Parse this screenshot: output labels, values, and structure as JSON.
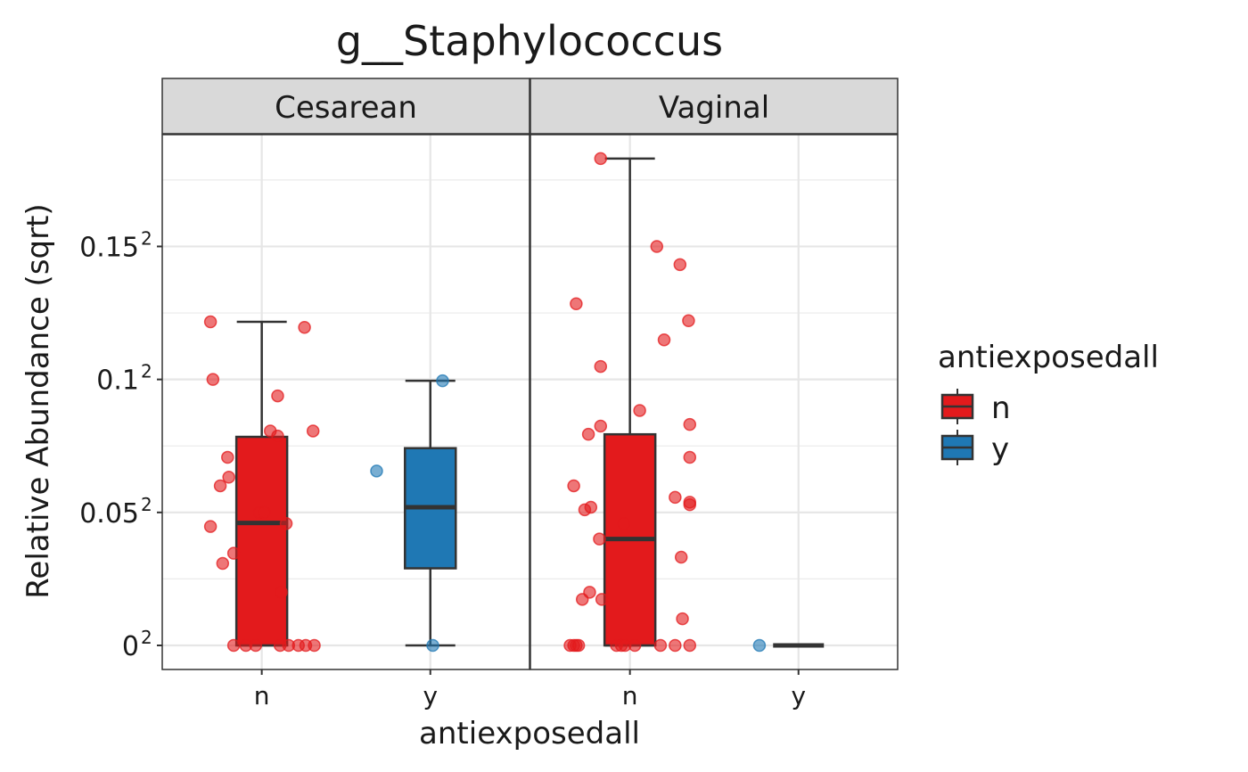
{
  "chart_data": {
    "type": "box",
    "title": "g__Staphylococcus",
    "xlabel": "antiexposedall",
    "ylabel": "Relative Abundance (sqrt)",
    "y_scale": "sqrt",
    "ylim": [
      0,
      0.0373
    ],
    "y_ticks": [
      {
        "base": "0",
        "value": 0
      },
      {
        "base": "0.05",
        "value": 0.0025
      },
      {
        "base": "0.1",
        "value": 0.01
      },
      {
        "base": "0.15",
        "value": 0.0225
      }
    ],
    "tick_exponent": "2",
    "categories": [
      "n",
      "y"
    ],
    "legend": {
      "title": "antiexposedall",
      "position": "right",
      "entries": [
        {
          "label": "n",
          "color": "#E31A1C"
        },
        {
          "label": "y",
          "color": "#1F78B4"
        }
      ]
    },
    "facets": [
      {
        "label": "Cesarean",
        "groups": [
          {
            "category": "n",
            "box": {
              "min": 0,
              "q1": 0,
              "median": 0.00212,
              "q3": 0.00615,
              "max": 0.0148
            },
            "points": [
              {
                "x": -0.42,
                "y": 0.0148
              },
              {
                "x": 0.35,
                "y": 0.0143
              },
              {
                "x": -0.4,
                "y": 0.01
              },
              {
                "x": 0.13,
                "y": 0.0088
              },
              {
                "x": 0.42,
                "y": 0.0065
              },
              {
                "x": 0.07,
                "y": 0.0065
              },
              {
                "x": 0.13,
                "y": 0.0062
              },
              {
                "x": -0.28,
                "y": 0.005
              },
              {
                "x": -0.27,
                "y": 0.004
              },
              {
                "x": -0.34,
                "y": 0.0036
              },
              {
                "x": -0.02,
                "y": 0.0025
              },
              {
                "x": 0.02,
                "y": 0.0025
              },
              {
                "x": 0.2,
                "y": 0.0021
              },
              {
                "x": -0.42,
                "y": 0.002
              },
              {
                "x": -0.23,
                "y": 0.0012
              },
              {
                "x": -0.32,
                "y": 0.00095
              },
              {
                "x": 0.16,
                "y": 0.0004
              },
              {
                "x": -0.23,
                "y": 0
              },
              {
                "x": -0.13,
                "y": 0
              },
              {
                "x": -0.05,
                "y": 0
              },
              {
                "x": 0.15,
                "y": 0
              },
              {
                "x": 0.22,
                "y": 0
              },
              {
                "x": 0.3,
                "y": 0
              },
              {
                "x": 0.36,
                "y": 0
              },
              {
                "x": 0.43,
                "y": 0
              }
            ]
          },
          {
            "category": "y",
            "box": {
              "min": 0,
              "q1": 0.00084,
              "median": 0.0027,
              "q3": 0.0055,
              "max": 0.0099
            },
            "points": [
              {
                "x": 0.1,
                "y": 0.0099
              },
              {
                "x": -0.44,
                "y": 0.0043
              },
              {
                "x": 0.02,
                "y": 0
              }
            ]
          }
        ]
      },
      {
        "label": "Vaginal",
        "groups": [
          {
            "category": "n",
            "box": {
              "min": 0,
              "q1": 0,
              "median": 0.0016,
              "q3": 0.0063,
              "max": 0.0335
            },
            "points": [
              {
                "x": -0.24,
                "y": 0.0335
              },
              {
                "x": 0.22,
                "y": 0.0225
              },
              {
                "x": 0.41,
                "y": 0.0205
              },
              {
                "x": -0.44,
                "y": 0.0165
              },
              {
                "x": 0.48,
                "y": 0.0149
              },
              {
                "x": 0.28,
                "y": 0.0132
              },
              {
                "x": -0.24,
                "y": 0.011
              },
              {
                "x": 0.08,
                "y": 0.0078
              },
              {
                "x": -0.24,
                "y": 0.0068
              },
              {
                "x": 0.49,
                "y": 0.0069
              },
              {
                "x": -0.34,
                "y": 0.0063
              },
              {
                "x": 0.49,
                "y": 0.005
              },
              {
                "x": -0.46,
                "y": 0.0036
              },
              {
                "x": 0.37,
                "y": 0.0031
              },
              {
                "x": -0.32,
                "y": 0.0027
              },
              {
                "x": -0.37,
                "y": 0.0026
              },
              {
                "x": 0.49,
                "y": 0.0028
              },
              {
                "x": 0.49,
                "y": 0.0029
              },
              {
                "x": -0.05,
                "y": 0.0021
              },
              {
                "x": -0.25,
                "y": 0.0016
              },
              {
                "x": 0.42,
                "y": 0.0011
              },
              {
                "x": -0.33,
                "y": 0.0004
              },
              {
                "x": -0.23,
                "y": 0.0003
              },
              {
                "x": -0.39,
                "y": 0.0003
              },
              {
                "x": 0.43,
                "y": 0.0001
              },
              {
                "x": -0.49,
                "y": 0
              },
              {
                "x": -0.46,
                "y": 0
              },
              {
                "x": -0.44,
                "y": 0
              },
              {
                "x": -0.42,
                "y": 0
              },
              {
                "x": -0.11,
                "y": 0
              },
              {
                "x": -0.07,
                "y": 0
              },
              {
                "x": -0.04,
                "y": 0
              },
              {
                "x": 0.04,
                "y": 0
              },
              {
                "x": 0.25,
                "y": 0
              },
              {
                "x": 0.37,
                "y": 0
              },
              {
                "x": 0.49,
                "y": 0
              }
            ]
          },
          {
            "category": "y",
            "box": {
              "min": 0,
              "q1": 0,
              "median": 0,
              "q3": 0,
              "max": 0
            },
            "points": [
              {
                "x": -0.32,
                "y": 0
              }
            ]
          }
        ]
      }
    ]
  }
}
